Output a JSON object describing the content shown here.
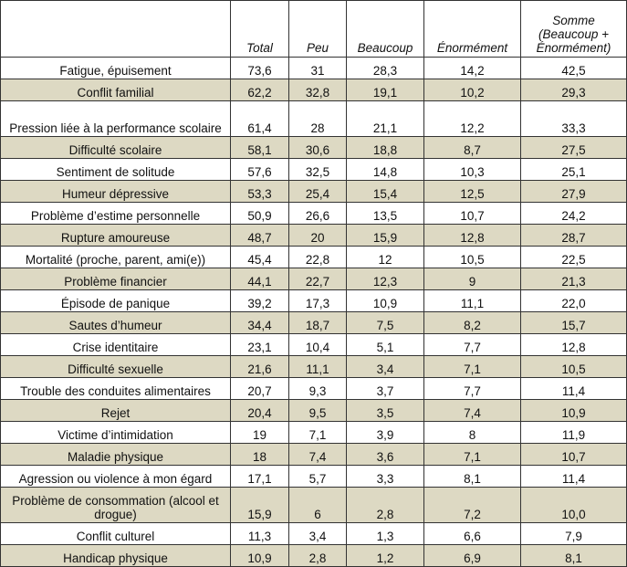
{
  "headers": [
    "",
    "Total",
    "Peu",
    "Beaucoup",
    "Énormément",
    "Somme (Beaucoup + Énormément)"
  ],
  "rows": [
    {
      "label": "Fatigue, épuisement",
      "total": "73,6",
      "peu": "31",
      "beaucoup": "28,3",
      "enormement": "14,2",
      "somme": "42,5"
    },
    {
      "label": "Conflit familial",
      "total": "62,2",
      "peu": "32,8",
      "beaucoup": "19,1",
      "enormement": "10,2",
      "somme": "29,3"
    },
    {
      "label": "Pression liée à la performance scolaire",
      "total": "61,4",
      "peu": "28",
      "beaucoup": "21,1",
      "enormement": "12,2",
      "somme": "33,3"
    },
    {
      "label": "Difficulté scolaire",
      "total": "58,1",
      "peu": "30,6",
      "beaucoup": "18,8",
      "enormement": "8,7",
      "somme": "27,5"
    },
    {
      "label": "Sentiment de solitude",
      "total": "57,6",
      "peu": "32,5",
      "beaucoup": "14,8",
      "enormement": "10,3",
      "somme": "25,1"
    },
    {
      "label": "Humeur dépressive",
      "total": "53,3",
      "peu": "25,4",
      "beaucoup": "15,4",
      "enormement": "12,5",
      "somme": "27,9"
    },
    {
      "label": "Problème d’estime personnelle",
      "total": "50,9",
      "peu": "26,6",
      "beaucoup": "13,5",
      "enormement": "10,7",
      "somme": "24,2"
    },
    {
      "label": "Rupture amoureuse",
      "total": "48,7",
      "peu": "20",
      "beaucoup": "15,9",
      "enormement": "12,8",
      "somme": "28,7"
    },
    {
      "label": "Mortalité (proche, parent, ami(e))",
      "total": "45,4",
      "peu": "22,8",
      "beaucoup": "12",
      "enormement": "10,5",
      "somme": "22,5"
    },
    {
      "label": "Problème financier",
      "total": "44,1",
      "peu": "22,7",
      "beaucoup": "12,3",
      "enormement": "9",
      "somme": "21,3"
    },
    {
      "label": "Épisode de panique",
      "total": "39,2",
      "peu": "17,3",
      "beaucoup": "10,9",
      "enormement": "11,1",
      "somme": "22,0"
    },
    {
      "label": "Sautes d’humeur",
      "total": "34,4",
      "peu": "18,7",
      "beaucoup": "7,5",
      "enormement": "8,2",
      "somme": "15,7"
    },
    {
      "label": "Crise identitaire",
      "total": "23,1",
      "peu": "10,4",
      "beaucoup": "5,1",
      "enormement": "7,7",
      "somme": "12,8"
    },
    {
      "label": "Difficulté sexuelle",
      "total": "21,6",
      "peu": "11,1",
      "beaucoup": "3,4",
      "enormement": "7,1",
      "somme": "10,5"
    },
    {
      "label": "Trouble des conduites alimentaires",
      "total": "20,7",
      "peu": "9,3",
      "beaucoup": "3,7",
      "enormement": "7,7",
      "somme": "11,4"
    },
    {
      "label": "Rejet",
      "total": "20,4",
      "peu": "9,5",
      "beaucoup": "3,5",
      "enormement": "7,4",
      "somme": "10,9"
    },
    {
      "label": "Victime d’intimidation",
      "total": "19",
      "peu": "7,1",
      "beaucoup": "3,9",
      "enormement": "8",
      "somme": "11,9"
    },
    {
      "label": "Maladie physique",
      "total": "18",
      "peu": "7,4",
      "beaucoup": "3,6",
      "enormement": "7,1",
      "somme": "10,7"
    },
    {
      "label": "Agression ou violence à mon égard",
      "total": "17,1",
      "peu": "5,7",
      "beaucoup": "3,3",
      "enormement": "8,1",
      "somme": "11,4"
    },
    {
      "label": "Problème de consommation (alcool et drogue)",
      "total": "15,9",
      "peu": "6",
      "beaucoup": "2,8",
      "enormement": "7,2",
      "somme": "10,0"
    },
    {
      "label": "Conflit culturel",
      "total": "11,3",
      "peu": "3,4",
      "beaucoup": "1,3",
      "enormement": "6,6",
      "somme": "7,9"
    },
    {
      "label": "Handicap physique",
      "total": "10,9",
      "peu": "2,8",
      "beaucoup": "1,2",
      "enormement": "6,9",
      "somme": "8,1"
    }
  ]
}
